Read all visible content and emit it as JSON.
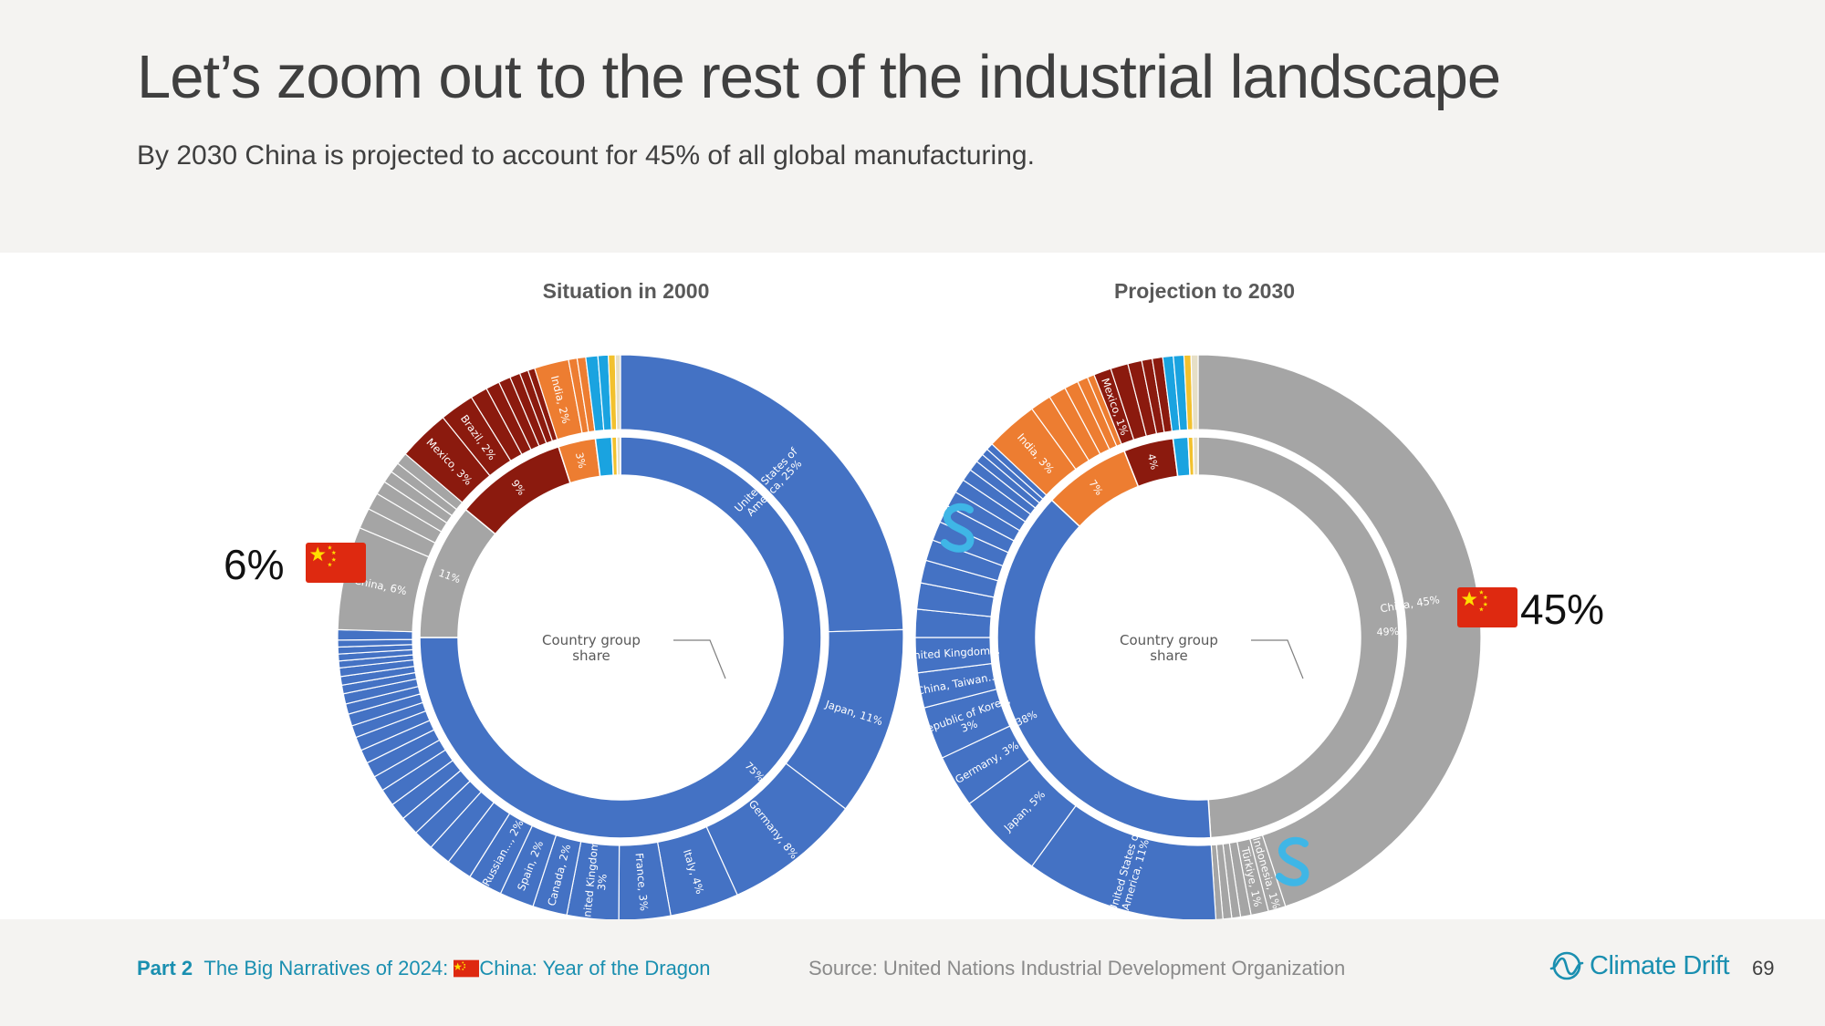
{
  "title": "Let’s zoom out to the rest of the industrial landscape",
  "subtitle": "By 2030 China is projected to account for 45% of all global manufacturing.",
  "callouts": {
    "left_value": "6%",
    "right_value": "45%"
  },
  "footer": {
    "part_label": "Part 2",
    "part_title_a": "The Big Narratives of 2024: ",
    "part_title_b": "China: Year of the Dragon",
    "source": "Source: United Nations Industrial Development Organization",
    "brand": "Climate Drift",
    "page_number": "69"
  },
  "colors": {
    "blue": "#4472c4",
    "grey": "#a5a5a5",
    "orange": "#ed7d31",
    "darkred": "#8b1a0e",
    "lightblue": "#1aa3e0",
    "yellow": "#f2c12e",
    "beige": "#e6dfc6",
    "flag_red": "#de2910",
    "flag_star": "#ffde00",
    "accent_s": "#3fb6e6"
  },
  "icons": {
    "flag": "china-flag-icon",
    "brand_logo": "climate-drift-logo-icon",
    "marker": "s-marker-icon"
  },
  "chart_data": [
    {
      "type": "pie",
      "title": "Situation in 2000",
      "center_label": [
        "Country group",
        "share"
      ],
      "inner_ring": [
        {
          "group": "blue",
          "value": 75,
          "label": "75%"
        },
        {
          "group": "grey",
          "value": 11,
          "label": "11%"
        },
        {
          "group": "darkred",
          "value": 9,
          "label": "9%"
        },
        {
          "group": "orange",
          "value": 3,
          "label": "3%"
        },
        {
          "group": "lightblue",
          "value": 1.3,
          "label": ""
        },
        {
          "group": "yellow",
          "value": 0.4,
          "label": ""
        },
        {
          "group": "beige",
          "value": 0.3,
          "label": ""
        }
      ],
      "outer_ring": [
        {
          "group": "blue",
          "value": 25,
          "label": [
            "United States of",
            "America, 25%"
          ]
        },
        {
          "group": "blue",
          "value": 11,
          "label": [
            "Japan, 11%"
          ]
        },
        {
          "group": "blue",
          "value": 8,
          "label": [
            "Germany, 8%"
          ]
        },
        {
          "group": "blue",
          "value": 4,
          "label": [
            "Italy, 4%"
          ]
        },
        {
          "group": "blue",
          "value": 3,
          "label": [
            "France, 3%"
          ]
        },
        {
          "group": "blue",
          "value": 3,
          "label": [
            "United Kingdom,",
            "3%"
          ]
        },
        {
          "group": "blue",
          "value": 2,
          "label": [
            "Canada, 2%"
          ]
        },
        {
          "group": "blue",
          "value": 2,
          "label": [
            "Spain, 2%"
          ]
        },
        {
          "group": "blue",
          "value": 2,
          "label": [
            "Russian..., 2%"
          ]
        },
        {
          "group": "blue",
          "value": 1.5,
          "label": []
        },
        {
          "group": "blue",
          "value": 1.3,
          "label": []
        },
        {
          "group": "blue",
          "value": 1.2,
          "label": []
        },
        {
          "group": "blue",
          "value": 1.1,
          "label": []
        },
        {
          "group": "blue",
          "value": 1,
          "label": []
        },
        {
          "group": "blue",
          "value": 1,
          "label": []
        },
        {
          "group": "blue",
          "value": 0.9,
          "label": []
        },
        {
          "group": "blue",
          "value": 0.9,
          "label": []
        },
        {
          "group": "blue",
          "value": 0.8,
          "label": []
        },
        {
          "group": "blue",
          "value": 0.8,
          "label": []
        },
        {
          "group": "blue",
          "value": 0.7,
          "label": []
        },
        {
          "group": "blue",
          "value": 0.7,
          "label": []
        },
        {
          "group": "blue",
          "value": 0.6,
          "label": []
        },
        {
          "group": "blue",
          "value": 0.6,
          "label": []
        },
        {
          "group": "blue",
          "value": 0.5,
          "label": []
        },
        {
          "group": "blue",
          "value": 0.5,
          "label": []
        },
        {
          "group": "blue",
          "value": 0.5,
          "label": []
        },
        {
          "group": "blue",
          "value": 0.4,
          "label": []
        },
        {
          "group": "blue",
          "value": 0.4,
          "label": []
        },
        {
          "group": "blue",
          "value": 0.4,
          "label": []
        },
        {
          "group": "blue",
          "value": 0.4,
          "label": []
        },
        {
          "group": "blue",
          "value": 0.6,
          "label": []
        },
        {
          "group": "grey",
          "value": 6,
          "label": [
            "China, 6%"
          ]
        },
        {
          "group": "grey",
          "value": 1.2,
          "label": []
        },
        {
          "group": "grey",
          "value": 1,
          "label": []
        },
        {
          "group": "grey",
          "value": 0.8,
          "label": []
        },
        {
          "group": "grey",
          "value": 0.7,
          "label": []
        },
        {
          "group": "grey",
          "value": 0.6,
          "label": []
        },
        {
          "group": "grey",
          "value": 0.7,
          "label": []
        },
        {
          "group": "darkred",
          "value": 3,
          "label": [
            "Mexico, 3%"
          ]
        },
        {
          "group": "darkred",
          "value": 2,
          "label": [
            "Brazil, 2%"
          ]
        },
        {
          "group": "darkred",
          "value": 1,
          "label": []
        },
        {
          "group": "darkred",
          "value": 0.8,
          "label": []
        },
        {
          "group": "darkred",
          "value": 0.7,
          "label": []
        },
        {
          "group": "darkred",
          "value": 0.6,
          "label": []
        },
        {
          "group": "darkred",
          "value": 0.5,
          "label": []
        },
        {
          "group": "darkred",
          "value": 0.4,
          "label": []
        },
        {
          "group": "orange",
          "value": 2,
          "label": [
            "India, 2%"
          ]
        },
        {
          "group": "orange",
          "value": 0.5,
          "label": []
        },
        {
          "group": "orange",
          "value": 0.5,
          "label": []
        },
        {
          "group": "lightblue",
          "value": 0.7,
          "label": []
        },
        {
          "group": "lightblue",
          "value": 0.6,
          "label": []
        },
        {
          "group": "yellow",
          "value": 0.4,
          "label": []
        },
        {
          "group": "beige",
          "value": 0.3,
          "label": []
        }
      ]
    },
    {
      "type": "pie",
      "title": "Projection to 2030",
      "center_label": [
        "Country group",
        "share"
      ],
      "inner_ring": [
        {
          "group": "grey",
          "value": 49,
          "label": "49%"
        },
        {
          "group": "blue",
          "value": 38,
          "label": "38%"
        },
        {
          "group": "orange",
          "value": 7,
          "label": "7%"
        },
        {
          "group": "darkred",
          "value": 4,
          "label": "4%"
        },
        {
          "group": "lightblue",
          "value": 1.2,
          "label": ""
        },
        {
          "group": "yellow",
          "value": 0.4,
          "label": ""
        },
        {
          "group": "beige",
          "value": 0.4,
          "label": ""
        }
      ],
      "outer_ring": [
        {
          "group": "grey",
          "value": 45,
          "label": [
            "China, 45%"
          ]
        },
        {
          "group": "grey",
          "value": 1,
          "label": [
            "Indonesia, 1%"
          ]
        },
        {
          "group": "grey",
          "value": 1,
          "label": [
            "Türkiye, 1%"
          ]
        },
        {
          "group": "grey",
          "value": 0.6,
          "label": []
        },
        {
          "group": "grey",
          "value": 0.5,
          "label": []
        },
        {
          "group": "grey",
          "value": 0.5,
          "label": []
        },
        {
          "group": "grey",
          "value": 0.4,
          "label": []
        },
        {
          "group": "blue",
          "value": 11,
          "label": [
            "United States of",
            "America, 11%"
          ]
        },
        {
          "group": "blue",
          "value": 5,
          "label": [
            "Japan, 5%"
          ]
        },
        {
          "group": "blue",
          "value": 3,
          "label": [
            "Germany, 3%"
          ]
        },
        {
          "group": "blue",
          "value": 3,
          "label": [
            "Republic of Korea,",
            "3%"
          ]
        },
        {
          "group": "blue",
          "value": 2,
          "label": [
            "China, Taiwan..."
          ]
        },
        {
          "group": "blue",
          "value": 2,
          "label": [
            "United Kingdom..."
          ]
        },
        {
          "group": "blue",
          "value": 1.6,
          "label": []
        },
        {
          "group": "blue",
          "value": 1.5,
          "label": []
        },
        {
          "group": "blue",
          "value": 1.3,
          "label": []
        },
        {
          "group": "blue",
          "value": 1.2,
          "label": []
        },
        {
          "group": "blue",
          "value": 1.1,
          "label": []
        },
        {
          "group": "blue",
          "value": 1,
          "label": []
        },
        {
          "group": "blue",
          "value": 0.9,
          "label": []
        },
        {
          "group": "blue",
          "value": 0.8,
          "label": []
        },
        {
          "group": "blue",
          "value": 0.7,
          "label": []
        },
        {
          "group": "blue",
          "value": 0.6,
          "label": []
        },
        {
          "group": "blue",
          "value": 0.5,
          "label": []
        },
        {
          "group": "blue",
          "value": 0.4,
          "label": []
        },
        {
          "group": "blue",
          "value": 0.4,
          "label": []
        },
        {
          "group": "orange",
          "value": 3,
          "label": [
            "India, 3%"
          ]
        },
        {
          "group": "orange",
          "value": 1.2,
          "label": []
        },
        {
          "group": "orange",
          "value": 1,
          "label": []
        },
        {
          "group": "orange",
          "value": 0.8,
          "label": []
        },
        {
          "group": "orange",
          "value": 0.6,
          "label": []
        },
        {
          "group": "orange",
          "value": 0.4,
          "label": []
        },
        {
          "group": "darkred",
          "value": 1,
          "label": [
            "Mexico, 1%"
          ]
        },
        {
          "group": "darkred",
          "value": 1,
          "label": []
        },
        {
          "group": "darkred",
          "value": 0.8,
          "label": []
        },
        {
          "group": "darkred",
          "value": 0.6,
          "label": []
        },
        {
          "group": "darkred",
          "value": 0.6,
          "label": []
        },
        {
          "group": "lightblue",
          "value": 0.6,
          "label": []
        },
        {
          "group": "lightblue",
          "value": 0.6,
          "label": []
        },
        {
          "group": "yellow",
          "value": 0.4,
          "label": []
        },
        {
          "group": "beige",
          "value": 0.4,
          "label": []
        }
      ]
    }
  ]
}
